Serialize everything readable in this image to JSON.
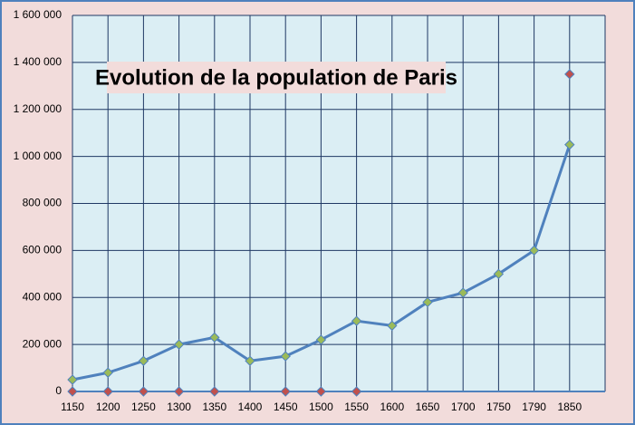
{
  "chart_data": {
    "type": "line",
    "title": "Evolution de la population de Paris",
    "categories": [
      "1150",
      "1200",
      "1250",
      "1300",
      "1350",
      "1400",
      "1450",
      "1500",
      "1550",
      "1600",
      "1650",
      "1700",
      "1750",
      "1790",
      "1850"
    ],
    "series": [
      {
        "color": "#4f81bd",
        "marker_color": "#9bbb59",
        "values": [
          50000,
          80000,
          130000,
          200000,
          230000,
          130000,
          150000,
          220000,
          300000,
          280000,
          380000,
          420000,
          500000,
          600000,
          1050000
        ]
      },
      {
        "color": "#c0504d",
        "values": [
          0,
          0,
          0,
          0,
          0,
          null,
          0,
          0,
          0,
          null,
          null,
          null,
          null,
          null,
          1350000
        ]
      }
    ],
    "ylim": [
      0,
      1600000
    ],
    "yticks": [
      0,
      {
        "value": 200000,
        "label": "200 000"
      },
      {
        "value": 400000,
        "label": "400 000"
      },
      {
        "value": 600000,
        "label": "600 000"
      },
      {
        "value": 800000,
        "label": "800 000"
      },
      {
        "value": 1000000,
        "label": "1 000 000"
      },
      {
        "value": 1200000,
        "label": "1 200 000"
      },
      {
        "value": 1400000,
        "label": "1 400 000"
      },
      {
        "value": 1600000,
        "label": "1 600 000"
      }
    ],
    "grid": true
  }
}
